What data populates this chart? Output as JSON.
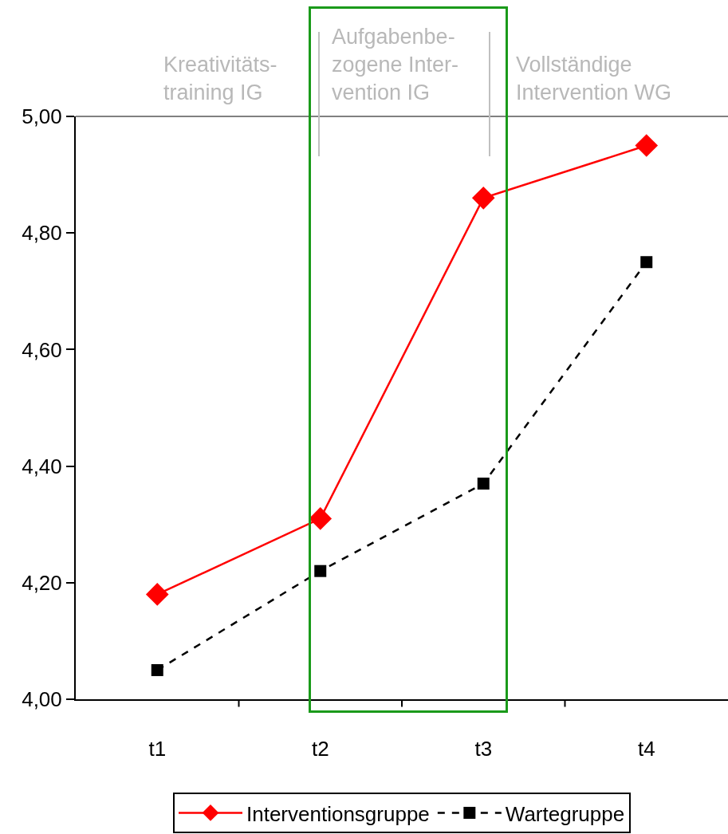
{
  "chart_data": {
    "type": "line",
    "categories": [
      "t1",
      "t2",
      "t3",
      "t4"
    ],
    "series": [
      {
        "name": "Interventionsgruppe",
        "color": "#ff0000",
        "values": [
          4.18,
          4.31,
          4.86,
          4.95
        ],
        "marker": "diamond",
        "line_style": "solid"
      },
      {
        "name": "Wartegruppe",
        "color": "#000000",
        "values": [
          4.05,
          4.22,
          4.37,
          4.75
        ],
        "marker": "square",
        "line_style": "dashed"
      }
    ],
    "ylim": [
      4,
      5
    ],
    "yticks": [
      {
        "value": 4,
        "label": "4,00"
      },
      {
        "value": 4.2,
        "label": "4,20"
      },
      {
        "value": 4.4,
        "label": "4,40"
      },
      {
        "value": 4.6,
        "label": "4,60"
      },
      {
        "value": 4.8,
        "label": "4,80"
      },
      {
        "value": 5,
        "label": "5,00"
      }
    ],
    "grid": false,
    "legend": "bottom",
    "annotations": [
      "Kreativitäts-\ntraining IG",
      "Aufgabenbe-\nzogene Inter-\nvention IG",
      "Vollständige\nIntervention WG"
    ]
  }
}
